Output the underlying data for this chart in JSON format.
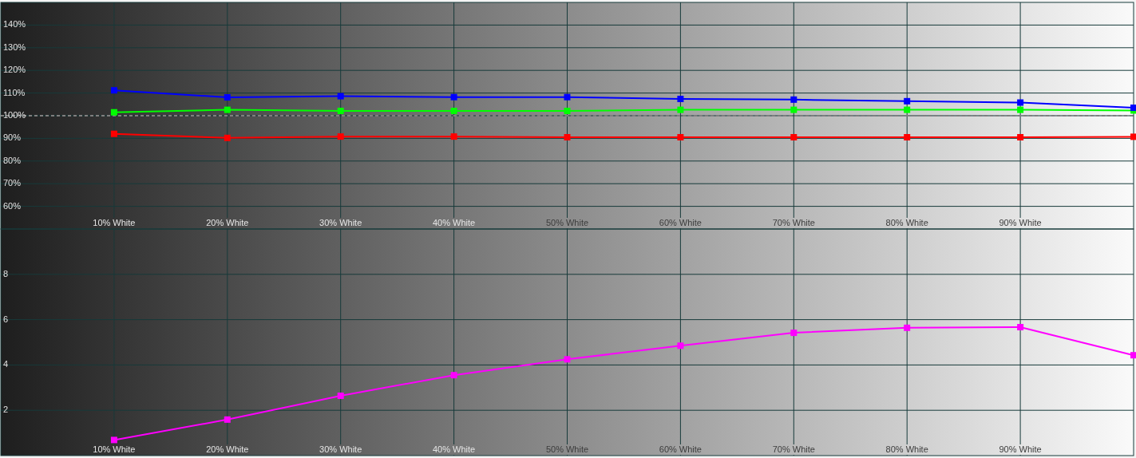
{
  "chart_data": [
    {
      "type": "line",
      "x": [
        10,
        20,
        30,
        40,
        50,
        60,
        70,
        80,
        90,
        100
      ],
      "series": [
        {
          "color": "#ff0000",
          "values": [
            92.0,
            90.2,
            90.8,
            90.8,
            90.5,
            90.5,
            90.5,
            90.5,
            90.5,
            90.7
          ]
        },
        {
          "color": "#00ff00",
          "values": [
            101.5,
            102.6,
            102.1,
            102.1,
            102.1,
            102.6,
            102.6,
            102.6,
            102.6,
            102.3
          ]
        },
        {
          "color": "#0000ff",
          "values": [
            111.2,
            108.1,
            108.6,
            108.2,
            108.2,
            107.4,
            107.1,
            106.4,
            105.8,
            103.5
          ]
        }
      ],
      "xlim": [
        0,
        100
      ],
      "xticks": [
        {
          "value": 10,
          "label": "10% White"
        },
        {
          "value": 20,
          "label": "20% White"
        },
        {
          "value": 30,
          "label": "30% White"
        },
        {
          "value": 40,
          "label": "40% White"
        },
        {
          "value": 50,
          "label": "50% White"
        },
        {
          "value": 60,
          "label": "60% White"
        },
        {
          "value": 70,
          "label": "70% White"
        },
        {
          "value": 80,
          "label": "80% White"
        },
        {
          "value": 90,
          "label": "90% White"
        }
      ],
      "ylim": [
        50,
        150
      ],
      "yticks": [
        {
          "value": 60,
          "label": "60%"
        },
        {
          "value": 70,
          "label": "70%"
        },
        {
          "value": 80,
          "label": "80%"
        },
        {
          "value": 90,
          "label": "90%"
        },
        {
          "value": 100,
          "label": "100%"
        },
        {
          "value": 110,
          "label": "110%"
        },
        {
          "value": 120,
          "label": "120%"
        },
        {
          "value": 130,
          "label": "130%"
        },
        {
          "value": 140,
          "label": "140%"
        }
      ],
      "ref_lines": [
        {
          "axis": "y",
          "value": 100,
          "color": "#ffffff",
          "line_style": "dashed"
        }
      ],
      "grid": true,
      "marker": "square"
    },
    {
      "type": "line",
      "x": [
        10,
        20,
        30,
        40,
        50,
        60,
        70,
        80,
        90,
        100
      ],
      "series": [
        {
          "color": "#ff00ff",
          "values": [
            0.69,
            1.59,
            2.64,
            3.55,
            4.25,
            4.85,
            5.42,
            5.64,
            5.67,
            4.43
          ]
        }
      ],
      "xlim": [
        0,
        100
      ],
      "xticks": [
        {
          "value": 10,
          "label": "10% White"
        },
        {
          "value": 20,
          "label": "20% White"
        },
        {
          "value": 30,
          "label": "30% White"
        },
        {
          "value": 40,
          "label": "40% White"
        },
        {
          "value": 50,
          "label": "50% White"
        },
        {
          "value": 60,
          "label": "60% White"
        },
        {
          "value": 70,
          "label": "70% White"
        },
        {
          "value": 80,
          "label": "80% White"
        },
        {
          "value": 90,
          "label": "90% White"
        }
      ],
      "ylim": [
        0,
        10
      ],
      "yticks": [
        2,
        4,
        6,
        8
      ],
      "grid": true,
      "marker": "square"
    }
  ]
}
